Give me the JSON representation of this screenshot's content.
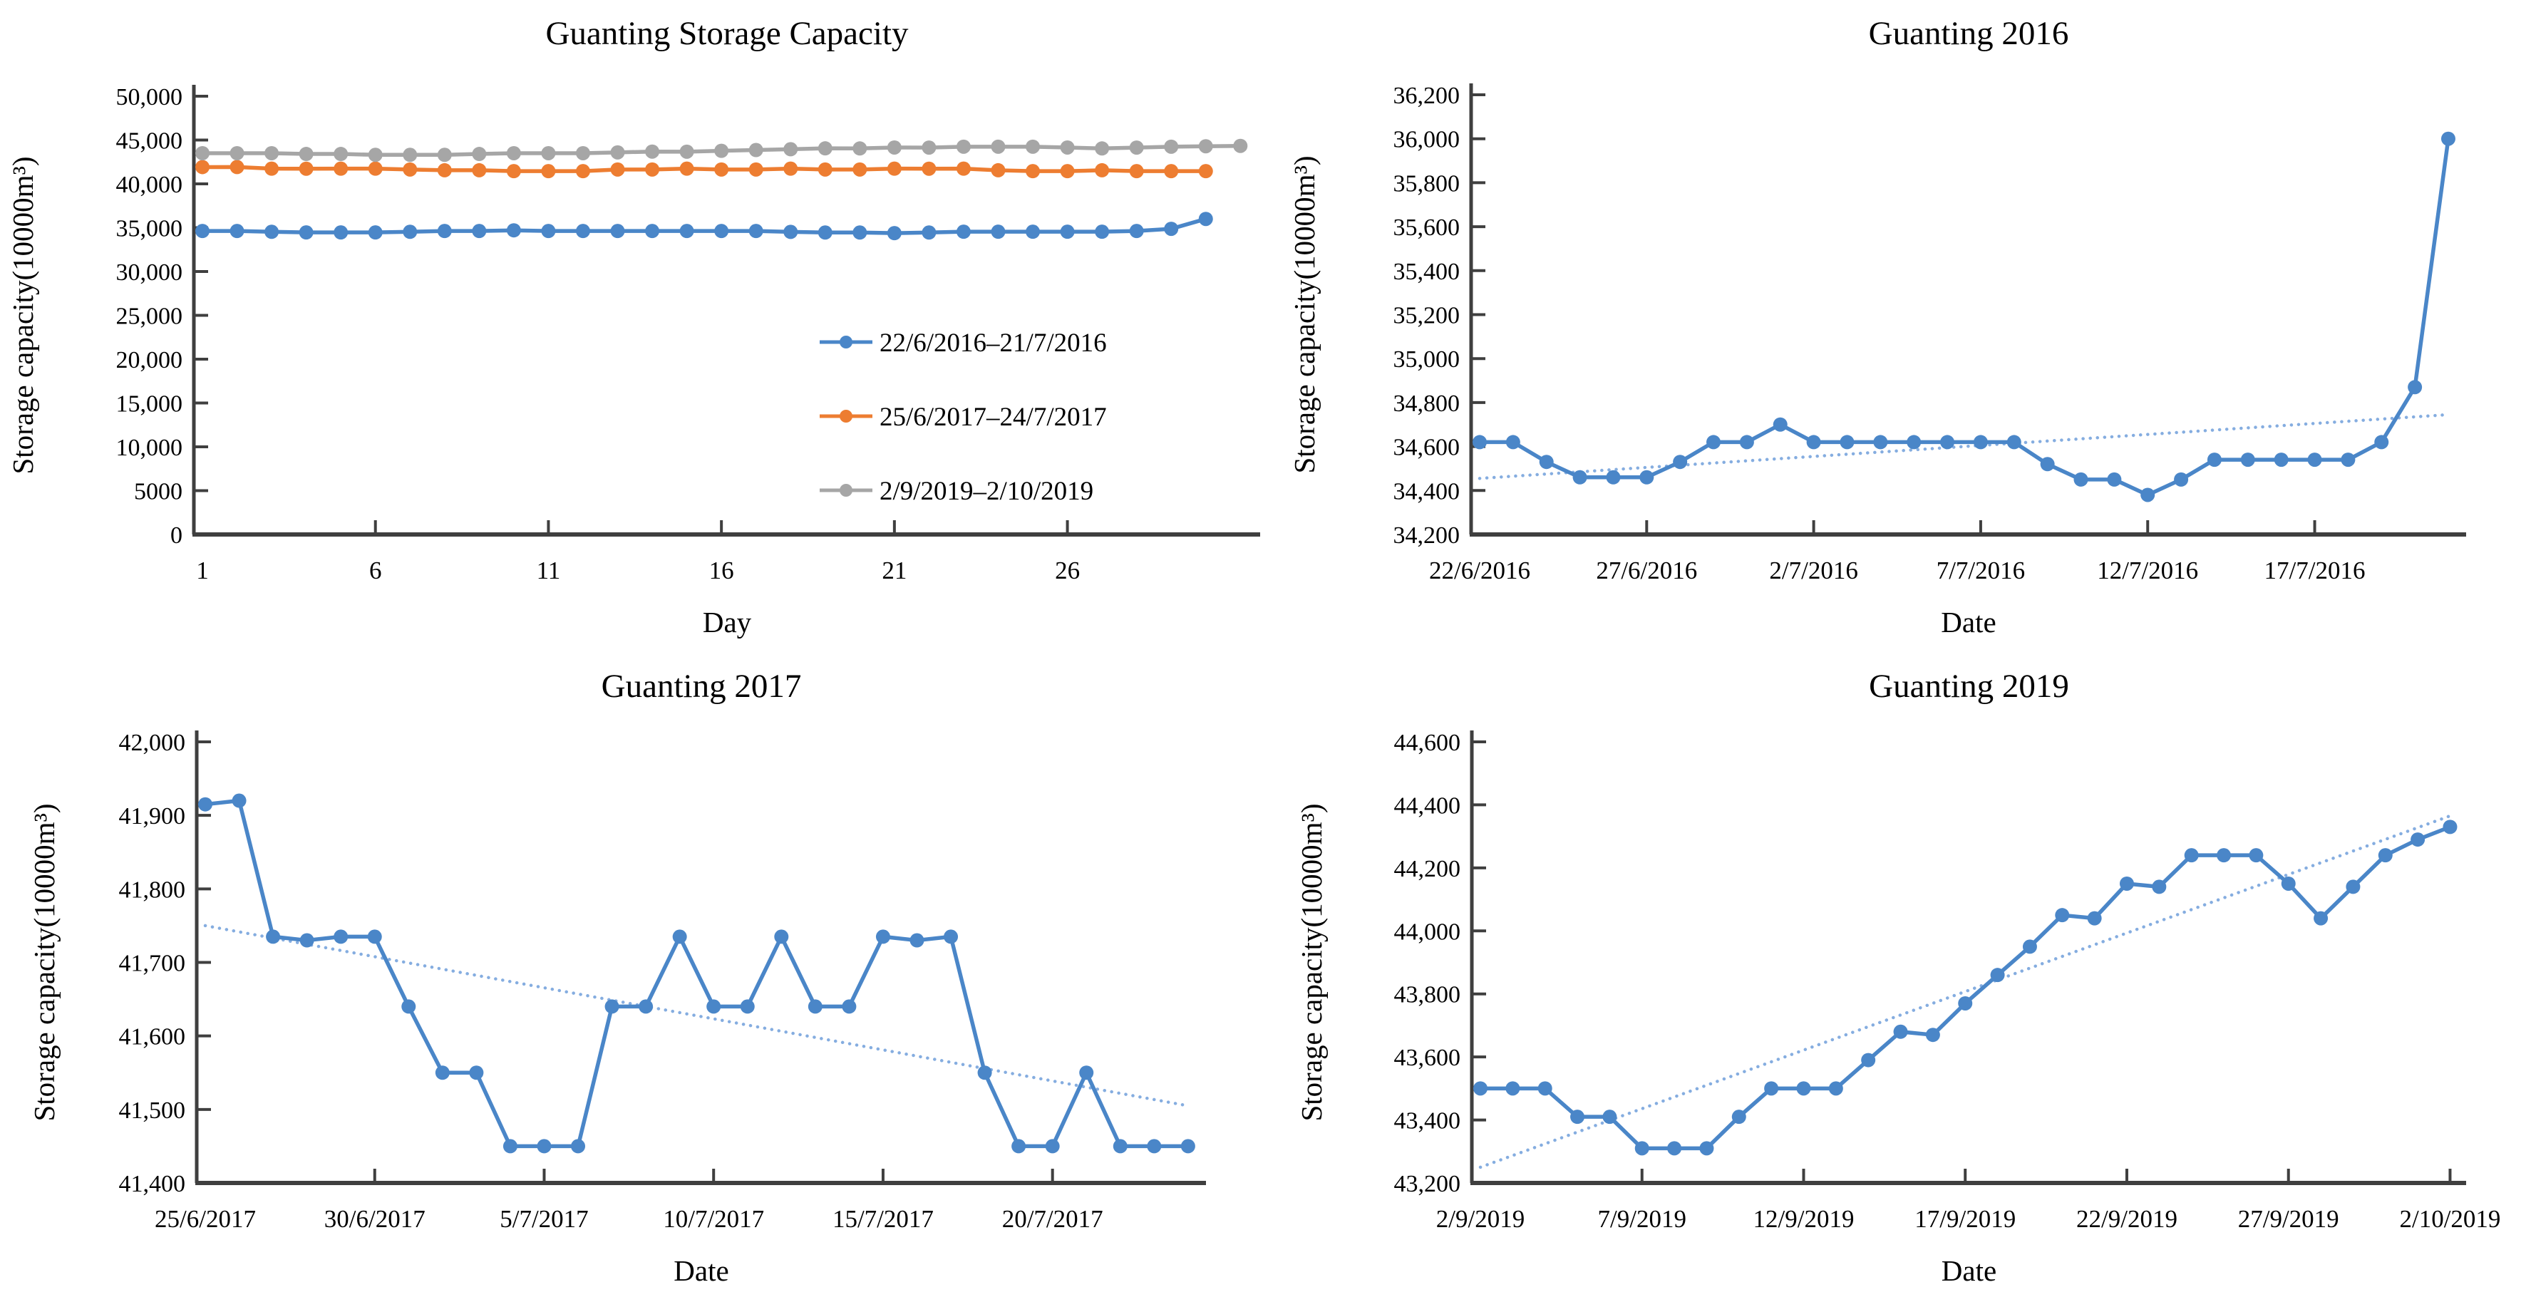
{
  "page": {
    "background": "#ffffff"
  },
  "colors": {
    "axis": "#3f3f3f",
    "text": "#000000",
    "series_blue": "#4a86c8",
    "series_orange": "#ed7d31",
    "series_gray": "#a6a6a6",
    "trendline_blue": "#85ade0"
  },
  "chart_data": [
    {
      "id": "overview",
      "type": "line",
      "title": "Guanting Storage Capacity",
      "xlabel": "Day",
      "ylabel": "Storage capacity(10000m³)",
      "ylim": [
        0,
        50000
      ],
      "grid": false,
      "legend_position": "inside-right",
      "yticks": [
        {
          "v": 50000,
          "label": "50,000"
        },
        {
          "v": 45000,
          "label": "45,000"
        },
        {
          "v": 40000,
          "label": "40,000"
        },
        {
          "v": 35000,
          "label": "35,000"
        },
        {
          "v": 30000,
          "label": "30,000"
        },
        {
          "v": 25000,
          "label": "25,000"
        },
        {
          "v": 20000,
          "label": "20,000"
        },
        {
          "v": 15000,
          "label": "15,000"
        },
        {
          "v": 10000,
          "label": "10,000"
        },
        {
          "v": 5000,
          "label": "5000"
        },
        {
          "v": 0,
          "label": "0"
        }
      ],
      "xticks": [
        {
          "day": 1,
          "label": "1"
        },
        {
          "day": 6,
          "label": "6"
        },
        {
          "day": 11,
          "label": "11"
        },
        {
          "day": 16,
          "label": "16"
        },
        {
          "day": 21,
          "label": "21"
        },
        {
          "day": 26,
          "label": "26"
        }
      ],
      "series": [
        {
          "name": "22/6/2016–21/7/2016",
          "color": "#4a86c8",
          "marker": "circle",
          "values": [
            34620,
            34620,
            34530,
            34460,
            34460,
            34460,
            34530,
            34620,
            34620,
            34700,
            34620,
            34620,
            34620,
            34620,
            34620,
            34620,
            34620,
            34520,
            34450,
            34450,
            34380,
            34450,
            34540,
            34540,
            34540,
            34540,
            34540,
            34620,
            34870,
            36000
          ]
        },
        {
          "name": "25/6/2017–24/7/2017",
          "color": "#ed7d31",
          "marker": "circle",
          "values": [
            41915,
            41920,
            41735,
            41730,
            41735,
            41735,
            41640,
            41550,
            41550,
            41450,
            41450,
            41450,
            41640,
            41640,
            41735,
            41640,
            41640,
            41735,
            41640,
            41640,
            41735,
            41730,
            41735,
            41550,
            41450,
            41450,
            41550,
            41450,
            41450,
            41450
          ]
        },
        {
          "name": "2/9/2019–2/10/2019",
          "color": "#a6a6a6",
          "marker": "circle",
          "values": [
            43500,
            43500,
            43500,
            43410,
            43410,
            43310,
            43310,
            43310,
            43410,
            43500,
            43500,
            43500,
            43590,
            43680,
            43670,
            43770,
            43860,
            43950,
            44050,
            44040,
            44150,
            44140,
            44240,
            44240,
            44240,
            44150,
            44040,
            44140,
            44240,
            44290,
            44330
          ]
        }
      ]
    },
    {
      "id": "guanting-2016",
      "type": "line",
      "title": "Guanting 2016",
      "xlabel": "Date",
      "ylabel": "Storage capacity(10000m³)",
      "ylim": [
        34200,
        36200
      ],
      "grid": false,
      "yticks": [
        {
          "v": 36200,
          "label": "36,200"
        },
        {
          "v": 36000,
          "label": "36,000"
        },
        {
          "v": 35800,
          "label": "35,800"
        },
        {
          "v": 35600,
          "label": "35,600"
        },
        {
          "v": 35400,
          "label": "35,400"
        },
        {
          "v": 35200,
          "label": "35,200"
        },
        {
          "v": 35000,
          "label": "35,000"
        },
        {
          "v": 34800,
          "label": "34,800"
        },
        {
          "v": 34600,
          "label": "34,600"
        },
        {
          "v": 34400,
          "label": "34,400"
        },
        {
          "v": 34200,
          "label": "34,200"
        }
      ],
      "xticks": [
        {
          "day": 1,
          "label": "22/6/2016"
        },
        {
          "day": 6,
          "label": "27/6/2016"
        },
        {
          "day": 11,
          "label": "2/7/2016"
        },
        {
          "day": 16,
          "label": "7/7/2016"
        },
        {
          "day": 21,
          "label": "12/7/2016"
        },
        {
          "day": 26,
          "label": "17/7/2016"
        }
      ],
      "trendline": {
        "style": "dotted",
        "color": "#85ade0",
        "start": 34455,
        "end": 34745
      },
      "series": [
        {
          "name": "22/6/2016–21/7/2016",
          "color": "#4a86c8",
          "marker": "circle",
          "values": [
            34620,
            34620,
            34530,
            34460,
            34460,
            34460,
            34530,
            34620,
            34620,
            34700,
            34620,
            34620,
            34620,
            34620,
            34620,
            34620,
            34620,
            34520,
            34450,
            34450,
            34380,
            34450,
            34540,
            34540,
            34540,
            34540,
            34540,
            34620,
            34870,
            36000
          ]
        }
      ]
    },
    {
      "id": "guanting-2017",
      "type": "line",
      "title": "Guanting 2017",
      "xlabel": "Date",
      "ylabel": "Storage capacity(10000m³)",
      "ylim": [
        41400,
        42000
      ],
      "grid": false,
      "yticks": [
        {
          "v": 42000,
          "label": "42,000"
        },
        {
          "v": 41900,
          "label": "41,900"
        },
        {
          "v": 41800,
          "label": "41,800"
        },
        {
          "v": 41700,
          "label": "41,700"
        },
        {
          "v": 41600,
          "label": "41,600"
        },
        {
          "v": 41500,
          "label": "41,500"
        },
        {
          "v": 41400,
          "label": "41,400"
        }
      ],
      "xticks": [
        {
          "day": 1,
          "label": "25/6/2017"
        },
        {
          "day": 6,
          "label": "30/6/2017"
        },
        {
          "day": 11,
          "label": "5/7/2017"
        },
        {
          "day": 16,
          "label": "10/7/2017"
        },
        {
          "day": 21,
          "label": "15/7/2017"
        },
        {
          "day": 26,
          "label": "20/7/2017"
        }
      ],
      "trendline": {
        "style": "dotted",
        "color": "#85ade0",
        "start": 41750,
        "end": 41505
      },
      "series": [
        {
          "name": "25/6/2017–24/7/2017",
          "color": "#4a86c8",
          "marker": "circle",
          "values": [
            41915,
            41920,
            41735,
            41730,
            41735,
            41735,
            41640,
            41550,
            41550,
            41450,
            41450,
            41450,
            41640,
            41640,
            41735,
            41640,
            41640,
            41735,
            41640,
            41640,
            41735,
            41730,
            41735,
            41550,
            41450,
            41450,
            41550,
            41450,
            41450,
            41450
          ]
        }
      ]
    },
    {
      "id": "guanting-2019",
      "type": "line",
      "title": "Guanting 2019",
      "xlabel": "Date",
      "ylabel": "Storage capacity(10000m³)",
      "ylim": [
        43200,
        44600
      ],
      "grid": false,
      "yticks": [
        {
          "v": 44600,
          "label": "44,600"
        },
        {
          "v": 44400,
          "label": "44,400"
        },
        {
          "v": 44200,
          "label": "44,200"
        },
        {
          "v": 44000,
          "label": "44,000"
        },
        {
          "v": 43800,
          "label": "43,800"
        },
        {
          "v": 43600,
          "label": "43,600"
        },
        {
          "v": 43400,
          "label": "43,400"
        },
        {
          "v": 43200,
          "label": "43,200"
        }
      ],
      "xticks": [
        {
          "day": 1,
          "label": "2/9/2019"
        },
        {
          "day": 6,
          "label": "7/9/2019"
        },
        {
          "day": 11,
          "label": "12/9/2019"
        },
        {
          "day": 16,
          "label": "17/9/2019"
        },
        {
          "day": 21,
          "label": "22/9/2019"
        },
        {
          "day": 26,
          "label": "27/9/2019"
        },
        {
          "day": 31,
          "label": "2/10/2019"
        }
      ],
      "trendline": {
        "style": "dotted",
        "color": "#85ade0",
        "start": 43250,
        "end": 44365
      },
      "series": [
        {
          "name": "2/9/2019–2/10/2019",
          "color": "#4a86c8",
          "marker": "circle",
          "values": [
            43500,
            43500,
            43500,
            43410,
            43410,
            43310,
            43310,
            43310,
            43410,
            43500,
            43500,
            43500,
            43590,
            43680,
            43670,
            43770,
            43860,
            43950,
            44050,
            44040,
            44150,
            44140,
            44240,
            44240,
            44240,
            44150,
            44040,
            44140,
            44240,
            44290,
            44330
          ]
        }
      ]
    }
  ]
}
